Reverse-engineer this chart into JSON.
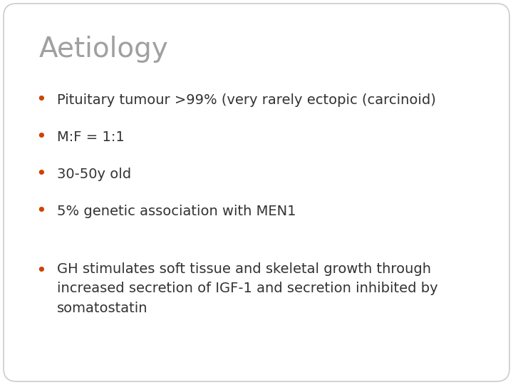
{
  "title": "Aetiology",
  "title_color": "#a0a0a0",
  "title_fontsize": 28,
  "bullet_color": "#cc4400",
  "text_color": "#333333",
  "background_color": "#ffffff",
  "bullet_fontsize": 14,
  "bullet_items": [
    "Pituitary tumour >99% (very rarely ectopic (carcinoid)",
    "M:F = 1:1",
    "30-50y old",
    "5% genetic association with MEN1"
  ],
  "extra_bullet": "GH stimulates soft tissue and skeletal growth through\nincreased secretion of IGF-1 and secretion inhibited by\nsomatostatin",
  "border_color": "#cccccc",
  "border_linewidth": 1.2
}
